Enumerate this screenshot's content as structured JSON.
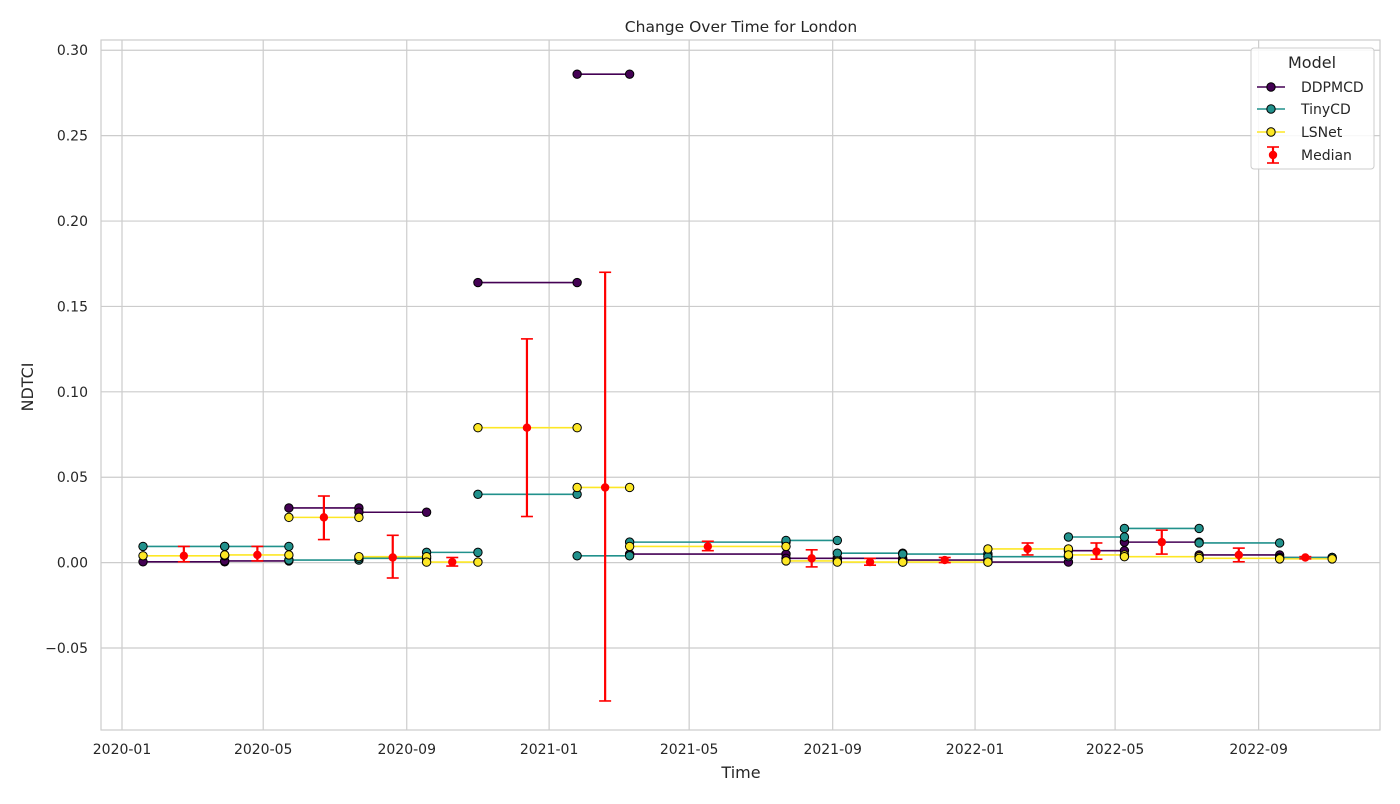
{
  "chart_data": {
    "type": "line",
    "title": "Change Over Time for London",
    "xlabel": "Time",
    "ylabel": "NDTCI",
    "x_axis": {
      "type": "date",
      "range": [
        "2019-12-14",
        "2022-12-14"
      ],
      "ticks": [
        "2020-01-01",
        "2020-05-01",
        "2020-09-01",
        "2021-01-01",
        "2021-05-01",
        "2021-09-01",
        "2022-01-01",
        "2022-05-01",
        "2022-09-01"
      ],
      "tick_labels": [
        "2020-01",
        "2020-05",
        "2020-09",
        "2021-01",
        "2021-05",
        "2021-09",
        "2022-01",
        "2022-05",
        "2022-09"
      ]
    },
    "y_axis": {
      "range": [
        -0.098,
        0.306
      ],
      "ticks": [
        -0.05,
        0.0,
        0.05,
        0.1,
        0.15,
        0.2,
        0.25,
        0.3
      ],
      "tick_labels": [
        "−0.05",
        "0.00",
        "0.05",
        "0.10",
        "0.15",
        "0.20",
        "0.25",
        "0.30"
      ]
    },
    "grid": true,
    "legend": {
      "title": "Model",
      "placement": "top-right"
    },
    "series": [
      {
        "name": "DDPMCD",
        "color": "#440154",
        "kind": "interval",
        "segments": [
          {
            "start": "2020-01-19",
            "end": "2020-03-29",
            "value": 0.0005
          },
          {
            "start": "2020-03-29",
            "end": "2020-05-23",
            "value": 0.001
          },
          {
            "start": "2020-05-23",
            "end": "2020-07-22",
            "value": 0.032
          },
          {
            "start": "2020-07-22",
            "end": "2020-09-18",
            "value": 0.0295
          },
          {
            "start": "2020-11-01",
            "end": "2021-01-25",
            "value": 0.164
          },
          {
            "start": "2021-01-25",
            "end": "2021-03-11",
            "value": 0.286
          },
          {
            "start": "2021-03-11",
            "end": "2021-07-23",
            "value": 0.005
          },
          {
            "start": "2021-07-23",
            "end": "2021-09-05",
            "value": 0.0025
          },
          {
            "start": "2021-09-05",
            "end": "2021-10-31",
            "value": 0.0025
          },
          {
            "start": "2021-10-31",
            "end": "2022-01-12",
            "value": 0.0015
          },
          {
            "start": "2022-01-12",
            "end": "2022-03-22",
            "value": 0.0003
          },
          {
            "start": "2022-03-22",
            "end": "2022-05-09",
            "value": 0.007
          },
          {
            "start": "2022-05-09",
            "end": "2022-07-12",
            "value": 0.012
          },
          {
            "start": "2022-07-12",
            "end": "2022-09-19",
            "value": 0.0045
          },
          {
            "start": "2022-09-19",
            "end": "2022-11-03",
            "value": 0.003
          }
        ]
      },
      {
        "name": "TinyCD",
        "color": "#21918c",
        "kind": "interval",
        "segments": [
          {
            "start": "2020-01-19",
            "end": "2020-03-29",
            "value": 0.0095
          },
          {
            "start": "2020-03-29",
            "end": "2020-05-23",
            "value": 0.0095
          },
          {
            "start": "2020-05-23",
            "end": "2020-07-22",
            "value": 0.0015
          },
          {
            "start": "2020-07-22",
            "end": "2020-09-18",
            "value": 0.0025
          },
          {
            "start": "2020-09-18",
            "end": "2020-11-01",
            "value": 0.006
          },
          {
            "start": "2020-11-01",
            "end": "2021-01-25",
            "value": 0.04
          },
          {
            "start": "2021-01-25",
            "end": "2021-03-11",
            "value": 0.004
          },
          {
            "start": "2021-03-11",
            "end": "2021-07-23",
            "value": 0.012
          },
          {
            "start": "2021-07-23",
            "end": "2021-09-05",
            "value": 0.013
          },
          {
            "start": "2021-09-05",
            "end": "2021-10-31",
            "value": 0.0055
          },
          {
            "start": "2021-10-31",
            "end": "2022-01-12",
            "value": 0.005
          },
          {
            "start": "2022-01-12",
            "end": "2022-03-22",
            "value": 0.0035
          },
          {
            "start": "2022-03-22",
            "end": "2022-05-09",
            "value": 0.015
          },
          {
            "start": "2022-05-09",
            "end": "2022-07-12",
            "value": 0.02
          },
          {
            "start": "2022-07-12",
            "end": "2022-09-19",
            "value": 0.0115
          },
          {
            "start": "2022-09-19",
            "end": "2022-11-03",
            "value": 0.003
          }
        ]
      },
      {
        "name": "LSNet",
        "color": "#fde725",
        "kind": "interval",
        "segments": [
          {
            "start": "2020-01-19",
            "end": "2020-03-29",
            "value": 0.004
          },
          {
            "start": "2020-03-29",
            "end": "2020-05-23",
            "value": 0.0045
          },
          {
            "start": "2020-05-23",
            "end": "2020-07-22",
            "value": 0.0265
          },
          {
            "start": "2020-07-22",
            "end": "2020-09-18",
            "value": 0.0035
          },
          {
            "start": "2020-09-18",
            "end": "2020-11-01",
            "value": 0.0003
          },
          {
            "start": "2020-11-01",
            "end": "2021-01-25",
            "value": 0.079
          },
          {
            "start": "2021-01-25",
            "end": "2021-03-11",
            "value": 0.044
          },
          {
            "start": "2021-03-11",
            "end": "2021-07-23",
            "value": 0.0095
          },
          {
            "start": "2021-07-23",
            "end": "2021-09-05",
            "value": 0.001
          },
          {
            "start": "2021-09-05",
            "end": "2021-10-31",
            "value": 0.0003
          },
          {
            "start": "2021-10-31",
            "end": "2022-01-12",
            "value": 0.0003
          },
          {
            "start": "2022-01-12",
            "end": "2022-03-22",
            "value": 0.008
          },
          {
            "start": "2022-03-22",
            "end": "2022-05-09",
            "value": 0.0045
          },
          {
            "start": "2022-05-09",
            "end": "2022-07-12",
            "value": 0.0035
          },
          {
            "start": "2022-07-12",
            "end": "2022-09-19",
            "value": 0.0025
          },
          {
            "start": "2022-09-19",
            "end": "2022-11-03",
            "value": 0.0022
          }
        ]
      },
      {
        "name": "Median",
        "color": "#ff0000",
        "kind": "errorbar",
        "points": [
          {
            "x": "2020-02-23",
            "y": 0.004,
            "low": 0.0005,
            "high": 0.0095
          },
          {
            "x": "2020-04-26",
            "y": 0.0045,
            "low": 0.001,
            "high": 0.0095
          },
          {
            "x": "2020-06-22",
            "y": 0.0265,
            "low": 0.0135,
            "high": 0.039
          },
          {
            "x": "2020-08-20",
            "y": 0.003,
            "low": -0.009,
            "high": 0.016
          },
          {
            "x": "2020-10-10",
            "y": 0.0003,
            "low": -0.002,
            "high": 0.003
          },
          {
            "x": "2020-12-13",
            "y": 0.079,
            "low": 0.027,
            "high": 0.131
          },
          {
            "x": "2021-02-18",
            "y": 0.044,
            "low": -0.081,
            "high": 0.17
          },
          {
            "x": "2021-05-17",
            "y": 0.0095,
            "low": 0.007,
            "high": 0.0125
          },
          {
            "x": "2021-08-14",
            "y": 0.0025,
            "low": -0.0025,
            "high": 0.0075
          },
          {
            "x": "2021-10-03",
            "y": 0.0003,
            "low": -0.0015,
            "high": 0.0025
          },
          {
            "x": "2021-12-06",
            "y": 0.0015,
            "low": 0.0,
            "high": 0.003
          },
          {
            "x": "2022-02-15",
            "y": 0.008,
            "low": 0.0045,
            "high": 0.0115
          },
          {
            "x": "2022-04-15",
            "y": 0.0065,
            "low": 0.002,
            "high": 0.0115
          },
          {
            "x": "2022-06-10",
            "y": 0.012,
            "low": 0.005,
            "high": 0.019
          },
          {
            "x": "2022-08-15",
            "y": 0.0045,
            "low": 0.0005,
            "high": 0.0085
          },
          {
            "x": "2022-10-11",
            "y": 0.003,
            "low": 0.0022,
            "high": 0.0035
          }
        ]
      }
    ]
  }
}
